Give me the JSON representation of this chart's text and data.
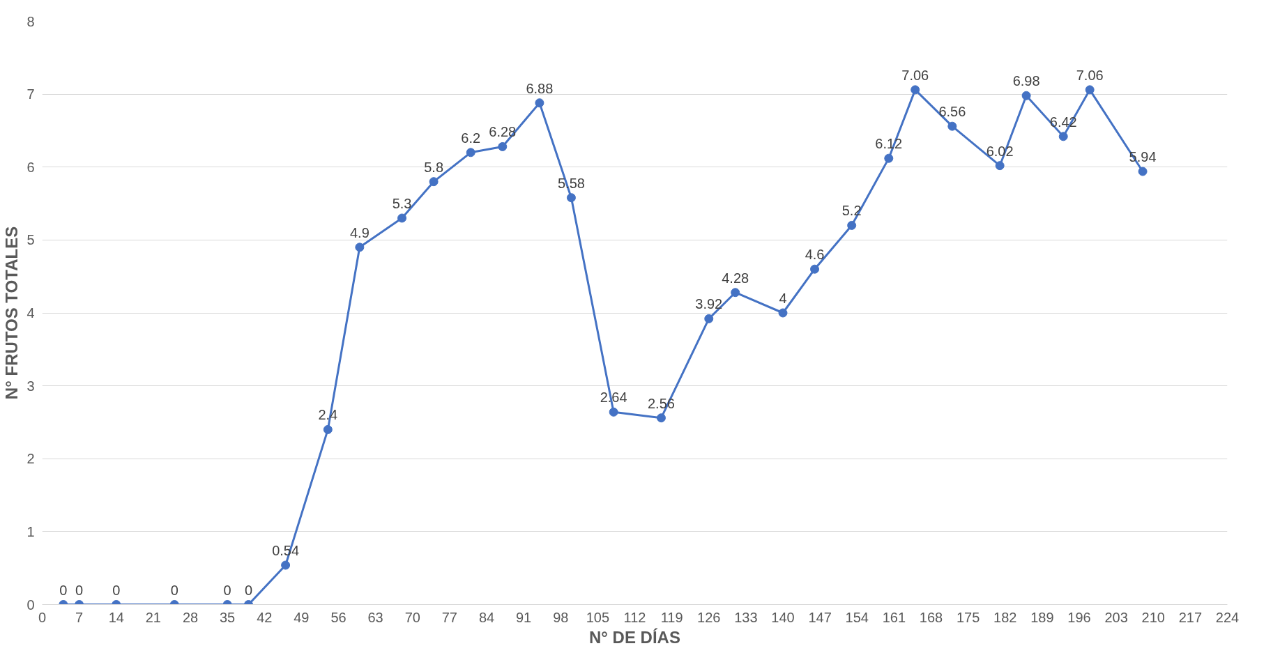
{
  "chart_data": {
    "type": "line",
    "xlabel": "N° DE DÍAS",
    "ylabel": "N° FRUTOS TOTALES",
    "x": [
      4,
      7,
      14,
      25,
      35,
      39,
      46,
      54,
      60,
      68,
      74,
      81,
      87,
      94,
      100,
      108,
      117,
      126,
      131,
      140,
      146,
      153,
      160,
      165,
      172,
      181,
      186,
      193,
      198,
      208
    ],
    "series": [
      {
        "color": "#4472c4",
        "values": [
          0,
          0,
          0,
          0,
          0,
          0,
          0.54,
          2.4,
          4.9,
          5.3,
          5.8,
          6.2,
          6.28,
          6.88,
          5.58,
          2.64,
          2.56,
          3.92,
          4.28,
          4,
          4.6,
          5.2,
          6.12,
          7.06,
          6.56,
          6.02,
          6.98,
          6.42,
          7.06,
          5.94
        ]
      }
    ],
    "xlim": [
      0,
      224
    ],
    "xticks": [
      0,
      7,
      14,
      21,
      28,
      35,
      42,
      49,
      56,
      63,
      70,
      77,
      84,
      91,
      98,
      105,
      112,
      119,
      126,
      133,
      140,
      147,
      154,
      161,
      168,
      175,
      182,
      189,
      196,
      203,
      210,
      217,
      224
    ],
    "ylim": [
      0,
      8
    ],
    "yticks": [
      0,
      1,
      2,
      3,
      4,
      5,
      6,
      7,
      8
    ],
    "grid": "y",
    "marker": "circle",
    "line_style": "solid",
    "data_labels": true
  }
}
